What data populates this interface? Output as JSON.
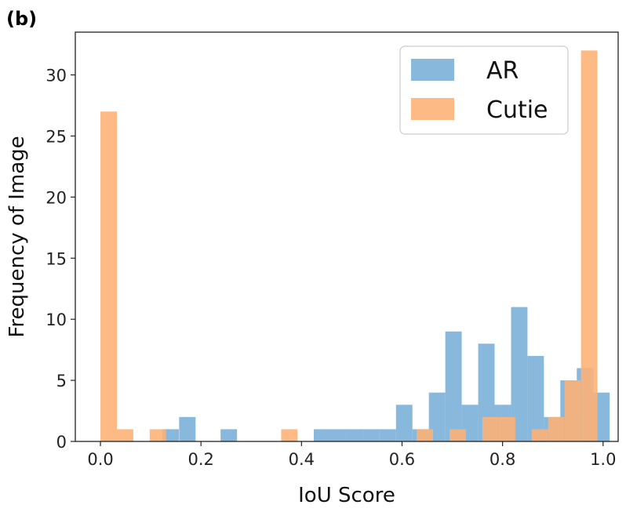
{
  "panel_label": "(b)",
  "chart_data": {
    "type": "histogram",
    "title": "",
    "xlabel": "IoU Score",
    "ylabel": "Frequency of Image",
    "xlim": [
      -0.05,
      1.03
    ],
    "ylim": [
      0,
      33.5
    ],
    "x_ticks": [
      "0.0",
      "0.2",
      "0.4",
      "0.6",
      "0.8",
      "1.0"
    ],
    "y_ticks": [
      "0",
      "5",
      "10",
      "15",
      "20",
      "25",
      "30"
    ],
    "bin_width": 0.0327,
    "legend_position": "top-right",
    "series": [
      {
        "name": "AR",
        "color": "#6fa8d6",
        "opacity": 0.82,
        "bins": [
          {
            "start": 0.1233,
            "count": 1
          },
          {
            "start": 0.1566,
            "count": 2
          },
          {
            "start": 0.239,
            "count": 1
          },
          {
            "start": 0.4245,
            "count": 1
          },
          {
            "start": 0.4572,
            "count": 1
          },
          {
            "start": 0.4899,
            "count": 1
          },
          {
            "start": 0.5226,
            "count": 1
          },
          {
            "start": 0.5553,
            "count": 1
          },
          {
            "start": 0.588,
            "count": 3
          },
          {
            "start": 0.6207,
            "count": 1
          },
          {
            "start": 0.6534,
            "count": 4
          },
          {
            "start": 0.6861,
            "count": 9
          },
          {
            "start": 0.7188,
            "count": 3
          },
          {
            "start": 0.7515,
            "count": 8
          },
          {
            "start": 0.7842,
            "count": 3
          },
          {
            "start": 0.8169,
            "count": 11
          },
          {
            "start": 0.8496,
            "count": 7
          },
          {
            "start": 0.8823,
            "count": 2
          },
          {
            "start": 0.915,
            "count": 5
          },
          {
            "start": 0.9477,
            "count": 6
          },
          {
            "start": 0.9804,
            "count": 4
          }
        ]
      },
      {
        "name": "Cutie",
        "color": "#fdb173",
        "opacity": 0.88,
        "bins": [
          {
            "start": 0.0,
            "count": 27
          },
          {
            "start": 0.0327,
            "count": 1
          },
          {
            "start": 0.098,
            "count": 1
          },
          {
            "start": 0.3595,
            "count": 1
          },
          {
            "start": 0.6291,
            "count": 1
          },
          {
            "start": 0.6945,
            "count": 1
          },
          {
            "start": 0.7599,
            "count": 2
          },
          {
            "start": 0.7926,
            "count": 2
          },
          {
            "start": 0.858,
            "count": 1
          },
          {
            "start": 0.8907,
            "count": 2
          },
          {
            "start": 0.9234,
            "count": 5
          },
          {
            "start": 0.9561,
            "count": 32
          }
        ]
      }
    ]
  }
}
